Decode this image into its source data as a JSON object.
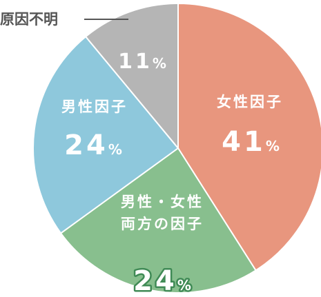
{
  "chart_data": {
    "type": "pie",
    "categories": [
      "女性因子",
      [
        "男性・女性",
        "両方の因子"
      ],
      "男性因子",
      "原因不明"
    ],
    "values": [
      41,
      24,
      24,
      11
    ],
    "value_labels": [
      "41%",
      "24%",
      "24%",
      "11%"
    ],
    "colors": [
      "#e8967e",
      "#88bf8e",
      "#8ec8dc",
      "#b5b5b5"
    ]
  }
}
